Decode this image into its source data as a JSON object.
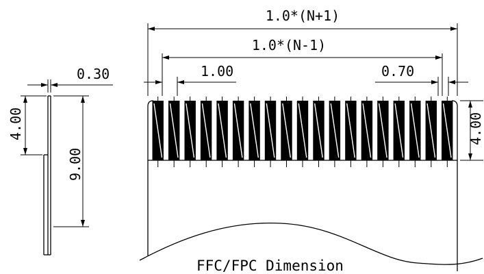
{
  "drawing": {
    "caption": "FFC/FPC Dimension",
    "dimensions": {
      "overall_width": "1.0*(N+1)",
      "pin_span": "1.0*(N-1)",
      "pitch": "1.00",
      "contact_width": "0.70",
      "thickness": "0.30",
      "stiffener_length": "4.00",
      "tail_length": "9.00",
      "contact_length": "4.00"
    },
    "contact_count": 19
  }
}
